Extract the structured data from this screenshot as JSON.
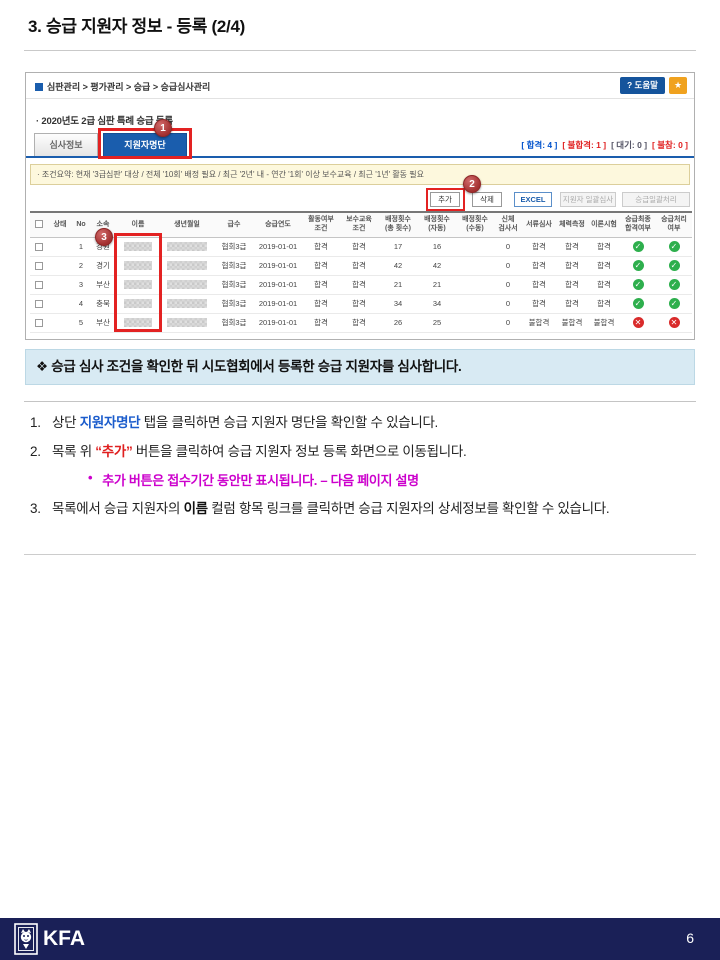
{
  "page": {
    "title": "3. 승급 지원자 정보 - 등록 (2/4)",
    "page_number": "6",
    "logo_text": "KFA"
  },
  "callout": "❖ 승급 심사 조건을 확인한 뒤 시도협회에서 등록한 승급 지원자를 심사합니다.",
  "app": {
    "breadcrumb": "심판관리 > 평가관리 > 승급 > 승급심사관리",
    "help_button": "? 도움말",
    "star_icon": "★",
    "list_title": "· 2020년도 2급 심판 특례 승급 등록",
    "tabs": [
      {
        "label": "심사정보",
        "active": false
      },
      {
        "label": "지원자명단",
        "active": true
      }
    ],
    "status_counts": [
      {
        "label": "합격",
        "value": "4",
        "color": "#0052cc"
      },
      {
        "label": "불합격",
        "value": "1",
        "color": "#e02020"
      },
      {
        "label": "대기",
        "value": "0",
        "color": "#555566"
      },
      {
        "label": "불참",
        "value": "0",
        "color": "#e02020"
      }
    ],
    "condition_note": "· 조건요약: 현재 '3급심판' 대상 / 전체 '10회' 배정 필요 / 최근 '2년' 내 - 연간 '1회' 이상 보수교육 / 최근 '1년' 활동 필요",
    "toolbar": {
      "add": "추가",
      "delete": "삭제",
      "excel": "EXCEL",
      "batch_review": "지원자 일괄심사",
      "batch_process": "승급일괄처리"
    },
    "table": {
      "headers": [
        "상태",
        "No",
        "소속",
        "이름",
        "생년월일",
        "급수",
        "승급연도",
        "활동여부\n조건",
        "보수교육\n조건",
        "배정횟수\n(총 횟수)",
        "배정횟수\n(자동)",
        "배정횟수\n(수동)",
        "신체\n검사서",
        "서류심사",
        "체력측정",
        "이론시험",
        "승급최종\n합격여부",
        "승급처리\n여부"
      ],
      "rows": [
        {
          "status": "",
          "no": "1",
          "org": "강원",
          "name_redacted": true,
          "birth_redacted": true,
          "grade": "협회3급",
          "year": "2019-01-01",
          "activity": "합격",
          "education": "합격",
          "total": "17",
          "auto": "16",
          "manual": "",
          "physical": "0",
          "doc": "합격",
          "fitness": "합격",
          "theory": "합격",
          "final": "pass",
          "process": "pass"
        },
        {
          "status": "",
          "no": "2",
          "org": "경기",
          "name_redacted": true,
          "birth_redacted": true,
          "grade": "협회3급",
          "year": "2019-01-01",
          "activity": "합격",
          "education": "합격",
          "total": "42",
          "auto": "42",
          "manual": "",
          "physical": "0",
          "doc": "합격",
          "fitness": "합격",
          "theory": "합격",
          "final": "pass",
          "process": "pass"
        },
        {
          "status": "",
          "no": "3",
          "org": "부산",
          "name_redacted": true,
          "birth_redacted": true,
          "grade": "협회3급",
          "year": "2019-01-01",
          "activity": "합격",
          "education": "합격",
          "total": "21",
          "auto": "21",
          "manual": "",
          "physical": "0",
          "doc": "합격",
          "fitness": "합격",
          "theory": "합격",
          "final": "pass",
          "process": "pass"
        },
        {
          "status": "",
          "no": "4",
          "org": "충북",
          "name_redacted": true,
          "birth_redacted": true,
          "grade": "협회3급",
          "year": "2019-01-01",
          "activity": "합격",
          "education": "합격",
          "total": "34",
          "auto": "34",
          "manual": "",
          "physical": "0",
          "doc": "합격",
          "fitness": "합격",
          "theory": "합격",
          "final": "pass",
          "process": "pass"
        },
        {
          "status": "",
          "no": "5",
          "org": "부산",
          "name_redacted": true,
          "birth_redacted": true,
          "grade": "협회3급",
          "year": "2019-01-01",
          "activity": "합격",
          "education": "합격",
          "total": "26",
          "auto": "25",
          "manual": "",
          "physical": "0",
          "doc": "불합격",
          "fitness": "불합격",
          "theory": "불합격",
          "final": "fail",
          "process": "fail"
        }
      ]
    }
  },
  "icons": {
    "pass": "✓",
    "fail": "✕"
  },
  "annotations": {
    "badge1": "1",
    "badge2": "2",
    "badge3": "3"
  },
  "instructions": [
    {
      "num": "1.",
      "parts": [
        {
          "t": "상단 "
        },
        {
          "t": "지원자명단",
          "style": "blue"
        },
        {
          "t": " 탭을 클릭하면 승급 지원자 명단을 확인할 수 있습니다."
        }
      ]
    },
    {
      "num": "2.",
      "parts": [
        {
          "t": "목록 위 "
        },
        {
          "t": "“추가”",
          "style": "red"
        },
        {
          "t": " 버튼을 클릭하여 승급 지원자 정보 등록 화면으로 이동됩니다."
        }
      ],
      "sub": {
        "bullet": "•",
        "text": "추가 버튼은 접수기간 동안만 표시됩니다. – 다음 페이지 설명"
      }
    },
    {
      "num": "3.",
      "parts": [
        {
          "t": "목록에서 승급 지원자의 "
        },
        {
          "t": "이름",
          "style": "bold"
        },
        {
          "t": " 컬럼 항목 링크를 클릭하면 승급 지원자의 상세정보를 확인할 수 있습니다."
        }
      ]
    }
  ]
}
